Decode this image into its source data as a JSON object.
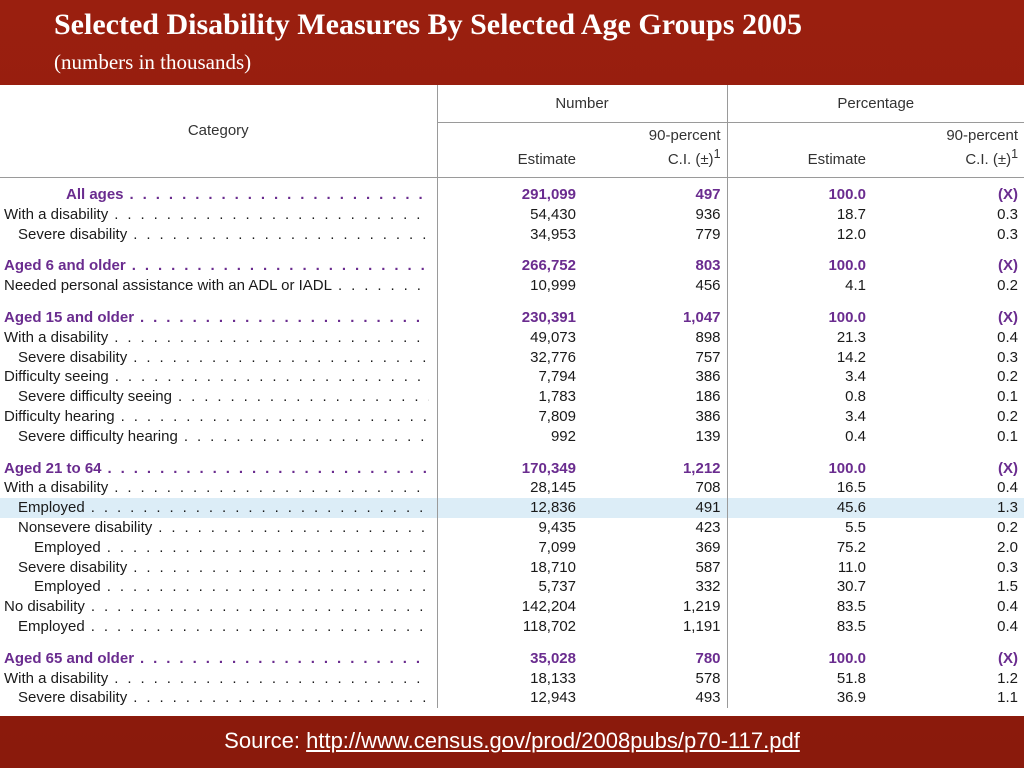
{
  "title": "Selected Disability Measures By Selected Age Groups 2005",
  "subtitle": "(numbers in thousands)",
  "table": {
    "category_header": "Category",
    "number_header": "Number",
    "percentage_header": "Percentage",
    "estimate_label": "Estimate",
    "ci_label_1": "90-percent",
    "ci_label_2": "C.I. (±)",
    "ci_sup": "1",
    "rows": [
      {
        "label": "All ages",
        "level": "top",
        "header": true,
        "n_est": "291,099",
        "n_ci": "497",
        "p_est": "100.0",
        "p_ci": "(X)"
      },
      {
        "label": "With a disability",
        "level": "l1",
        "n_est": "54,430",
        "n_ci": "936",
        "p_est": "18.7",
        "p_ci": "0.3"
      },
      {
        "label": "Severe disability",
        "level": "l2",
        "n_est": "34,953",
        "n_ci": "779",
        "p_est": "12.0",
        "p_ci": "0.3"
      },
      {
        "label": "Aged 6 and older",
        "level": "l1",
        "header": true,
        "n_est": "266,752",
        "n_ci": "803",
        "p_est": "100.0",
        "p_ci": "(X)"
      },
      {
        "label": "Needed personal assistance with an ADL or IADL",
        "level": "l1",
        "n_est": "10,999",
        "n_ci": "456",
        "p_est": "4.1",
        "p_ci": "0.2"
      },
      {
        "label": "Aged 15 and older",
        "level": "l1",
        "header": true,
        "n_est": "230,391",
        "n_ci": "1,047",
        "p_est": "100.0",
        "p_ci": "(X)"
      },
      {
        "label": "With a disability",
        "level": "l1",
        "n_est": "49,073",
        "n_ci": "898",
        "p_est": "21.3",
        "p_ci": "0.4"
      },
      {
        "label": "Severe disability",
        "level": "l2",
        "n_est": "32,776",
        "n_ci": "757",
        "p_est": "14.2",
        "p_ci": "0.3"
      },
      {
        "label": "Difficulty seeing",
        "level": "l1",
        "n_est": "7,794",
        "n_ci": "386",
        "p_est": "3.4",
        "p_ci": "0.2"
      },
      {
        "label": "Severe difficulty seeing",
        "level": "l2",
        "n_est": "1,783",
        "n_ci": "186",
        "p_est": "0.8",
        "p_ci": "0.1"
      },
      {
        "label": "Difficulty hearing",
        "level": "l1",
        "n_est": "7,809",
        "n_ci": "386",
        "p_est": "3.4",
        "p_ci": "0.2"
      },
      {
        "label": "Severe difficulty hearing",
        "level": "l2",
        "n_est": "992",
        "n_ci": "139",
        "p_est": "0.4",
        "p_ci": "0.1"
      },
      {
        "label": "Aged 21 to 64",
        "level": "l1",
        "header": true,
        "n_est": "170,349",
        "n_ci": "1,212",
        "p_est": "100.0",
        "p_ci": "(X)"
      },
      {
        "label": "With a disability",
        "level": "l1",
        "n_est": "28,145",
        "n_ci": "708",
        "p_est": "16.5",
        "p_ci": "0.4"
      },
      {
        "label": "Employed",
        "level": "l2",
        "highlight": true,
        "n_est": "12,836",
        "n_ci": "491",
        "p_est": "45.6",
        "p_ci": "1.3"
      },
      {
        "label": "Nonsevere disability",
        "level": "l2",
        "n_est": "9,435",
        "n_ci": "423",
        "p_est": "5.5",
        "p_ci": "0.2"
      },
      {
        "label": "Employed",
        "level": "l3",
        "n_est": "7,099",
        "n_ci": "369",
        "p_est": "75.2",
        "p_ci": "2.0"
      },
      {
        "label": "Severe disability",
        "level": "l2",
        "n_est": "18,710",
        "n_ci": "587",
        "p_est": "11.0",
        "p_ci": "0.3"
      },
      {
        "label": "Employed",
        "level": "l3",
        "n_est": "5,737",
        "n_ci": "332",
        "p_est": "30.7",
        "p_ci": "1.5"
      },
      {
        "label": "No disability",
        "level": "l1",
        "n_est": "142,204",
        "n_ci": "1,219",
        "p_est": "83.5",
        "p_ci": "0.4"
      },
      {
        "label": "Employed",
        "level": "l2",
        "n_est": "118,702",
        "n_ci": "1,191",
        "p_est": "83.5",
        "p_ci": "0.4"
      },
      {
        "label": "Aged 65 and older",
        "level": "l1",
        "header": true,
        "n_est": "35,028",
        "n_ci": "780",
        "p_est": "100.0",
        "p_ci": "(X)"
      },
      {
        "label": "With a disability",
        "level": "l1",
        "n_est": "18,133",
        "n_ci": "578",
        "p_est": "51.8",
        "p_ci": "1.2"
      },
      {
        "label": "Severe disability",
        "level": "l2",
        "n_est": "12,943",
        "n_ci": "493",
        "p_est": "36.9",
        "p_ci": "1.1"
      }
    ]
  },
  "source": {
    "prefix": "Source: ",
    "link_text": "http://www.census.gov/prod/2008pubs/p70-117.pdf"
  },
  "colors": {
    "background": "#8b1a0e",
    "header_text": "#6a2c8f",
    "highlight_row": "#dcedf7"
  }
}
